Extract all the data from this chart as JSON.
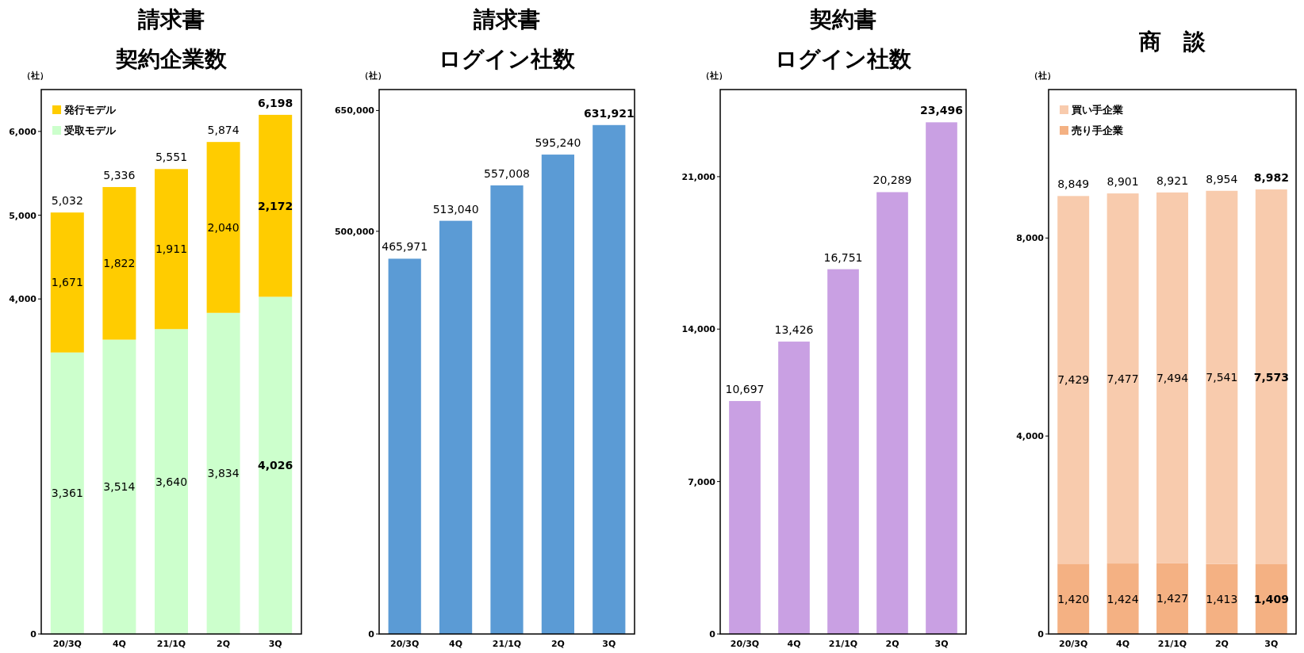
{
  "chart_data": [
    {
      "type": "bar",
      "title": "請求書",
      "subtitle": "契約企業数",
      "ylabel": "（社）",
      "categories": [
        "20/3Q",
        "4Q",
        "21/1Q",
        "2Q",
        "3Q"
      ],
      "stacked": true,
      "legend": "top left",
      "grid": false,
      "series": [
        {
          "name": "受取モデル",
          "color": "#ccffcc",
          "values": [
            3361,
            3514,
            3640,
            3834,
            4026
          ],
          "value_labels": [
            "3,361",
            "3,514",
            "3,640",
            "3,834",
            "4,026"
          ]
        },
        {
          "name": "発行モデル",
          "color": "#ffcc00",
          "values": [
            1671,
            1822,
            1911,
            2040,
            2172
          ],
          "value_labels": [
            "1,671",
            "1,822",
            "1,911",
            "2,040",
            "2,172"
          ]
        }
      ],
      "totals": [
        "5,032",
        "5,336",
        "5,551",
        "5,874",
        "6,198"
      ],
      "ylim": [
        0,
        6500
      ],
      "yticks": [
        {
          "value": 0,
          "label": "0"
        },
        {
          "value": 4000,
          "label": "4,000"
        },
        {
          "value": 5000,
          "label": "5,000"
        },
        {
          "value": 6000,
          "label": "6,000"
        }
      ]
    },
    {
      "type": "bar",
      "title": "請求書",
      "subtitle": "ログイン社数",
      "ylabel": "（社）",
      "categories": [
        "20/3Q",
        "4Q",
        "21/1Q",
        "2Q",
        "3Q"
      ],
      "grid": false,
      "series": [
        {
          "color": "#5b9bd5",
          "values": [
            465971,
            513040,
            557008,
            595240,
            631921
          ],
          "value_labels": [
            "465,971",
            "513,040",
            "557,008",
            "595,240",
            "631,921"
          ]
        }
      ],
      "ylim": [
        0,
        676000
      ],
      "yticks": [
        {
          "value": 0,
          "label": "0"
        },
        {
          "value": 500000,
          "label": "500,000"
        },
        {
          "value": 650000,
          "label": "650,000"
        }
      ]
    },
    {
      "type": "bar",
      "title": "契約書",
      "subtitle": "ログイン社数",
      "ylabel": "（社）",
      "categories": [
        "20/3Q",
        "4Q",
        "21/1Q",
        "2Q",
        "3Q"
      ],
      "grid": false,
      "series": [
        {
          "color": "#c9a0e3",
          "values": [
            10697,
            13426,
            16751,
            20289,
            23496
          ],
          "value_labels": [
            "10,697",
            "13,426",
            "16,751",
            "20,289",
            "23,496"
          ]
        }
      ],
      "ylim": [
        0,
        25000
      ],
      "yticks": [
        {
          "value": 0,
          "label": "0"
        },
        {
          "value": 7000,
          "label": "7,000"
        },
        {
          "value": 14000,
          "label": "14,000"
        },
        {
          "value": 21000,
          "label": "21,000"
        }
      ]
    },
    {
      "type": "bar",
      "title": "商　談",
      "ylabel": "（社）",
      "categories": [
        "20/3Q",
        "4Q",
        "21/1Q",
        "2Q",
        "3Q"
      ],
      "stacked": true,
      "legend": "top left",
      "grid": false,
      "series": [
        {
          "name": "売り手企業",
          "color": "#f4b183",
          "values": [
            1420,
            1424,
            1427,
            1413,
            1409
          ],
          "value_labels": [
            "1,420",
            "1,424",
            "1,427",
            "1,413",
            "1,409"
          ]
        },
        {
          "name": "買い手企業",
          "color": "#f8cbad",
          "values": [
            7429,
            7477,
            7494,
            7541,
            7573
          ],
          "value_labels": [
            "7,429",
            "7,477",
            "7,494",
            "7,541",
            "7,573"
          ]
        }
      ],
      "totals": [
        "8,849",
        "8,901",
        "8,921",
        "8,954",
        "8,982"
      ],
      "ylim": [
        0,
        11000
      ],
      "yticks": [
        {
          "value": 0,
          "label": "0"
        },
        {
          "value": 4000,
          "label": "4,000"
        },
        {
          "value": 8000,
          "label": "8,000"
        }
      ]
    }
  ]
}
